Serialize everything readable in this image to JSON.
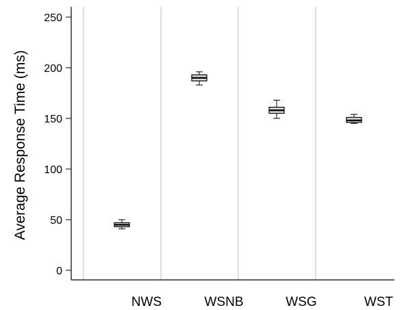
{
  "chart_data": {
    "type": "box",
    "title": "",
    "xlabel": "",
    "ylabel": "Average Response Time (ms)",
    "ylim": [
      0,
      260
    ],
    "yticks": [
      0,
      50,
      100,
      150,
      200,
      250
    ],
    "categories": [
      "NWS",
      "WSNB",
      "WSG",
      "WST"
    ],
    "boxes": [
      {
        "category": "NWS",
        "min": 41,
        "q1": 43,
        "median": 45,
        "q3": 47,
        "max": 50
      },
      {
        "category": "WSNB",
        "min": 183,
        "q1": 187,
        "median": 190,
        "q3": 193,
        "max": 196
      },
      {
        "category": "WSG",
        "min": 150,
        "q1": 155,
        "median": 158,
        "q3": 161,
        "max": 168
      },
      {
        "category": "WST",
        "min": 145,
        "q1": 146,
        "median": 148,
        "q3": 151,
        "max": 154
      }
    ],
    "grid": "vertical lines at category boundaries",
    "colors": {
      "box_fill": "#d9d9d9",
      "box_stroke": "#000000",
      "grid": "#c0c0c0",
      "axis": "#000000"
    }
  }
}
